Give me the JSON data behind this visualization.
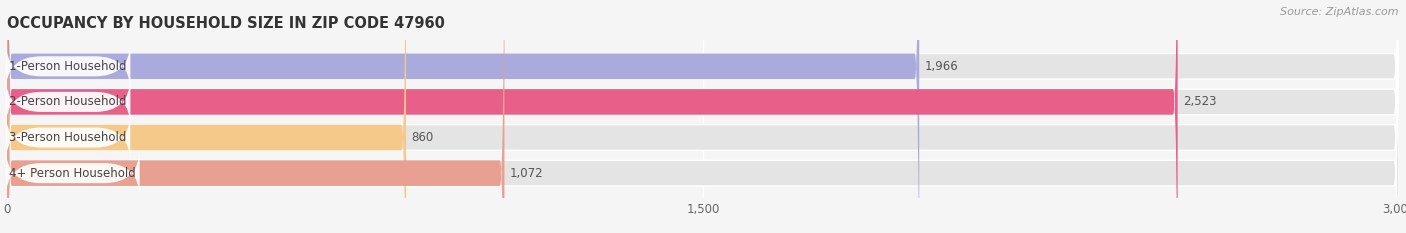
{
  "title": "OCCUPANCY BY HOUSEHOLD SIZE IN ZIP CODE 47960",
  "source": "Source: ZipAtlas.com",
  "categories": [
    "1-Person Household",
    "2-Person Household",
    "3-Person Household",
    "4+ Person Household"
  ],
  "values": [
    1966,
    2523,
    860,
    1072
  ],
  "bar_colors": [
    "#aaaadd",
    "#e8608a",
    "#f5c98a",
    "#e8a090"
  ],
  "xlim": [
    0,
    3000
  ],
  "xticks": [
    0,
    1500,
    3000
  ],
  "background_color": "#f5f5f5",
  "bar_bg_color": "#e4e4e4",
  "label_bg_color": "#ffffff",
  "title_fontsize": 10.5,
  "tick_fontsize": 8.5,
  "label_fontsize": 8.5,
  "value_fontsize": 8.5,
  "source_fontsize": 8,
  "bar_height": 0.72,
  "fig_width": 14.06,
  "fig_height": 2.33
}
